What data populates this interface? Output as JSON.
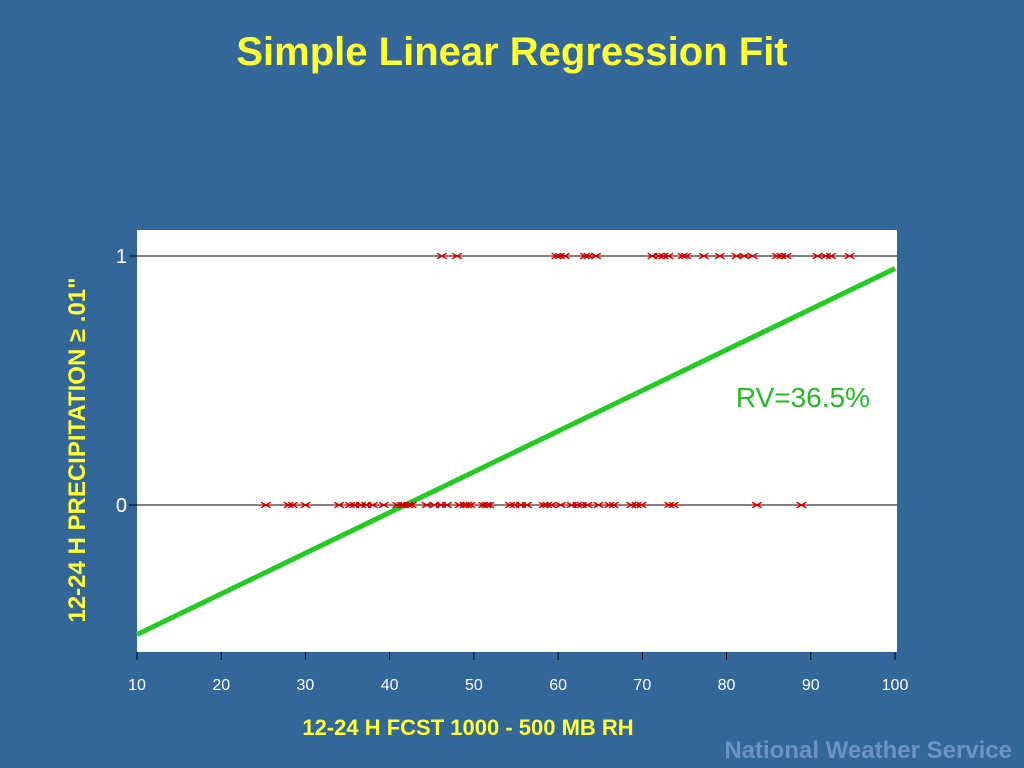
{
  "slide": {
    "title": "Simple Linear Regression Fit",
    "footer": "National Weather Service"
  },
  "colors": {
    "background": "#336699",
    "title": "#ffff33",
    "plot_bg": "#ffffff",
    "points": "#cc0000",
    "fit_line": "#22cc22",
    "footer": "#6b93c4"
  },
  "chart_data": {
    "type": "scatter",
    "title": "Simple Linear Regression Fit",
    "xlabel": "12-24 H FCST 1000 - 500 MB RH",
    "ylabel": "12-24 H PRECIPITATION ≥ .01\"",
    "xlim": [
      10,
      100
    ],
    "ylim": [
      -0.6,
      1.1
    ],
    "x_ticks": [
      10,
      20,
      30,
      40,
      50,
      60,
      70,
      80,
      90,
      100
    ],
    "y_ticks": [
      0,
      1
    ],
    "y_tick_labels": [
      "0",
      "1"
    ],
    "hlines": [
      0,
      1
    ],
    "annotation": "RV=36.5%",
    "series": [
      {
        "y": 1,
        "x": [
          46.2,
          48,
          59.8,
          60.2,
          60.8,
          63.2,
          63.6,
          64.5,
          71.2,
          72,
          72.5,
          73.1,
          74.8,
          75.2,
          77.3,
          79.2,
          81.2,
          82.1,
          83.1,
          86,
          86.5,
          87.1,
          90.8,
          91.8,
          92.4,
          94.6
        ]
      },
      {
        "y": 0,
        "x": [
          25.3,
          28,
          28.5,
          30,
          34,
          35.3,
          35.8,
          36.6,
          37.2,
          38,
          39.3,
          40.9,
          41.4,
          41.7,
          42.2,
          42.6,
          44.4,
          45.3,
          46.1,
          46.8,
          48.3,
          48.9,
          49.2,
          49.6,
          51.1,
          51.5,
          51.8,
          54.3,
          54.8,
          55.6,
          56.3,
          58.3,
          58.7,
          59.2,
          60.3,
          61.6,
          62.3,
          62.8,
          63.5,
          64.8,
          66.1,
          66.6,
          68.7,
          69.3,
          69.9,
          73.2,
          73.7,
          83.6,
          88.9
        ]
      }
    ],
    "fit_line": {
      "x": [
        10,
        100
      ],
      "y": [
        -0.52,
        0.95
      ]
    }
  }
}
